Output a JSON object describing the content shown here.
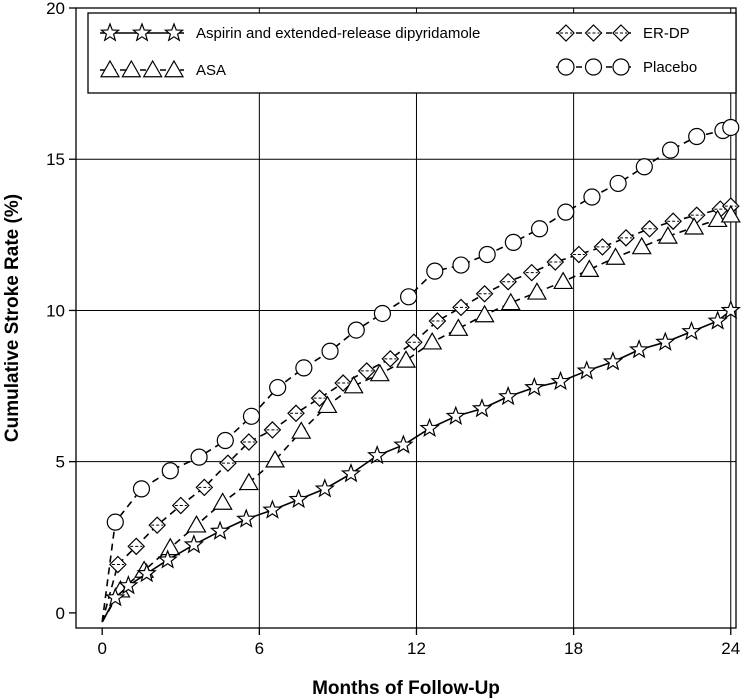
{
  "chart_data": {
    "type": "line",
    "title": "",
    "xlabel": "Months of Follow-Up",
    "ylabel": "Cumulative Stroke Rate (%)",
    "xlim": [
      -1,
      24.2
    ],
    "ylim": [
      -0.5,
      20
    ],
    "xticks": [
      0,
      6,
      12,
      18,
      24
    ],
    "yticks": [
      0,
      5,
      10,
      15,
      20
    ],
    "grid": true,
    "legend_placement": "top",
    "series": [
      {
        "name": "Aspirin and extended-release dipyridamole",
        "marker": "star",
        "linestyle": "solid",
        "x": [
          0,
          0.5,
          1,
          1.7,
          2.5,
          3.5,
          4.5,
          5.5,
          6.5,
          7.5,
          8.5,
          9.5,
          10.5,
          11.5,
          12.5,
          13.5,
          14.5,
          15.5,
          16.5,
          17.5,
          18.5,
          19.5,
          20.5,
          21.5,
          22.5,
          23.5,
          24
        ],
        "y": [
          -0.3,
          0.5,
          0.9,
          1.3,
          1.75,
          2.25,
          2.7,
          3.1,
          3.4,
          3.75,
          4.1,
          4.6,
          5.2,
          5.55,
          6.1,
          6.5,
          6.75,
          7.15,
          7.45,
          7.65,
          8.0,
          8.3,
          8.7,
          8.95,
          9.3,
          9.65,
          10.0
        ]
      },
      {
        "name": "ER-DP",
        "marker": "diamond",
        "linestyle": "dashed",
        "x": [
          0,
          0.6,
          1.3,
          2.1,
          3,
          3.9,
          4.8,
          5.6,
          6.5,
          7.4,
          8.3,
          9.2,
          10.1,
          11,
          11.9,
          12.8,
          13.7,
          14.6,
          15.5,
          16.4,
          17.3,
          18.2,
          19.1,
          20,
          20.9,
          21.8,
          22.7,
          23.6,
          24
        ],
        "y": [
          -0.3,
          1.6,
          2.2,
          2.9,
          3.55,
          4.15,
          4.95,
          5.65,
          6.05,
          6.6,
          7.1,
          7.6,
          8.0,
          8.4,
          8.95,
          9.65,
          10.1,
          10.55,
          10.95,
          11.25,
          11.6,
          11.85,
          12.1,
          12.4,
          12.7,
          12.95,
          13.15,
          13.35,
          13.45
        ]
      },
      {
        "name": "ASA",
        "marker": "triangle",
        "linestyle": "dashed",
        "x": [
          0,
          0.7,
          1.6,
          2.6,
          3.6,
          4.6,
          5.6,
          6.6,
          7.6,
          8.6,
          9.6,
          10.6,
          11.6,
          12.6,
          13.6,
          14.6,
          15.6,
          16.6,
          17.6,
          18.6,
          19.6,
          20.6,
          21.6,
          22.6,
          23.5,
          24
        ],
        "y": [
          -0.3,
          0.75,
          1.4,
          2.15,
          2.9,
          3.65,
          4.3,
          5.05,
          6.0,
          6.85,
          7.5,
          7.9,
          8.35,
          8.95,
          9.4,
          9.85,
          10.25,
          10.6,
          10.95,
          11.35,
          11.75,
          12.1,
          12.45,
          12.75,
          13.0,
          13.15
        ]
      },
      {
        "name": "Placebo",
        "marker": "circle",
        "linestyle": "dashed",
        "x": [
          0,
          0.5,
          1.5,
          2.6,
          3.7,
          4.7,
          5.7,
          6.7,
          7.7,
          8.7,
          9.7,
          10.7,
          11.7,
          12.7,
          13.7,
          14.7,
          15.7,
          16.7,
          17.7,
          18.7,
          19.7,
          20.7,
          21.7,
          22.7,
          23.7,
          24
        ],
        "y": [
          -0.3,
          3.0,
          4.1,
          4.7,
          5.15,
          5.7,
          6.5,
          7.45,
          8.1,
          8.65,
          9.35,
          9.9,
          10.45,
          11.3,
          11.5,
          11.85,
          12.25,
          12.7,
          13.25,
          13.75,
          14.2,
          14.75,
          15.3,
          15.75,
          15.95,
          16.05
        ]
      }
    ]
  }
}
